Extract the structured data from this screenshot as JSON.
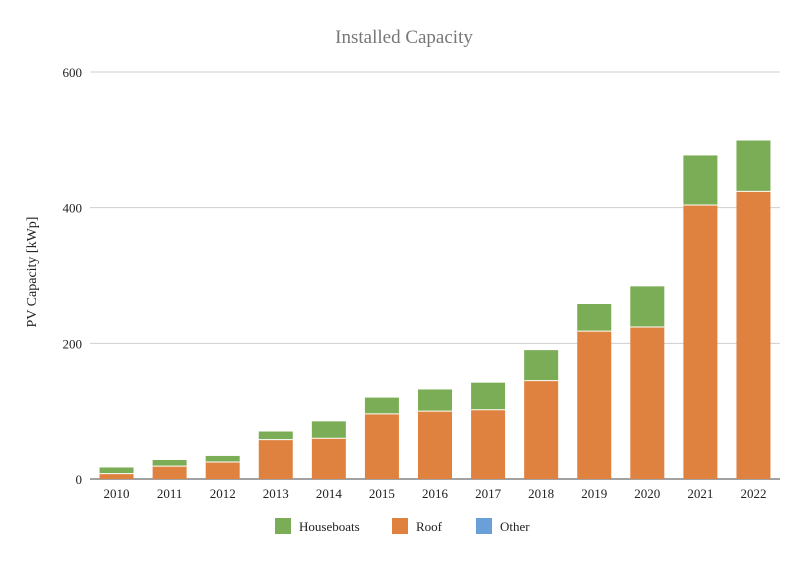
{
  "chart_data": {
    "type": "bar",
    "stacked": true,
    "title": "Installed Capacity",
    "xlabel": "",
    "ylabel": "PV Capacity [kWp]",
    "categories": [
      "2010",
      "2011",
      "2012",
      "2013",
      "2014",
      "2015",
      "2016",
      "2017",
      "2018",
      "2019",
      "2020",
      "2021",
      "2022"
    ],
    "series": [
      {
        "name": "Roof",
        "color": "#e0823f",
        "values": [
          8,
          19,
          25,
          58,
          60,
          96,
          100,
          102,
          145,
          218,
          224,
          404,
          424
        ]
      },
      {
        "name": "Houseboats",
        "color": "#7aad55",
        "values": [
          9,
          9,
          9,
          12,
          25,
          24,
          32,
          40,
          45,
          40,
          60,
          73,
          75
        ]
      },
      {
        "name": "Other",
        "color": "#6a9fd8",
        "values": [
          0,
          0,
          0,
          0,
          0,
          0,
          0,
          0,
          0,
          0,
          0,
          0,
          0
        ]
      }
    ],
    "ylim": [
      0,
      600
    ],
    "yticks": [
      0,
      200,
      400,
      600
    ],
    "grid": true,
    "legend": {
      "position": "bottom",
      "order": [
        "Houseboats",
        "Roof",
        "Other"
      ]
    }
  }
}
